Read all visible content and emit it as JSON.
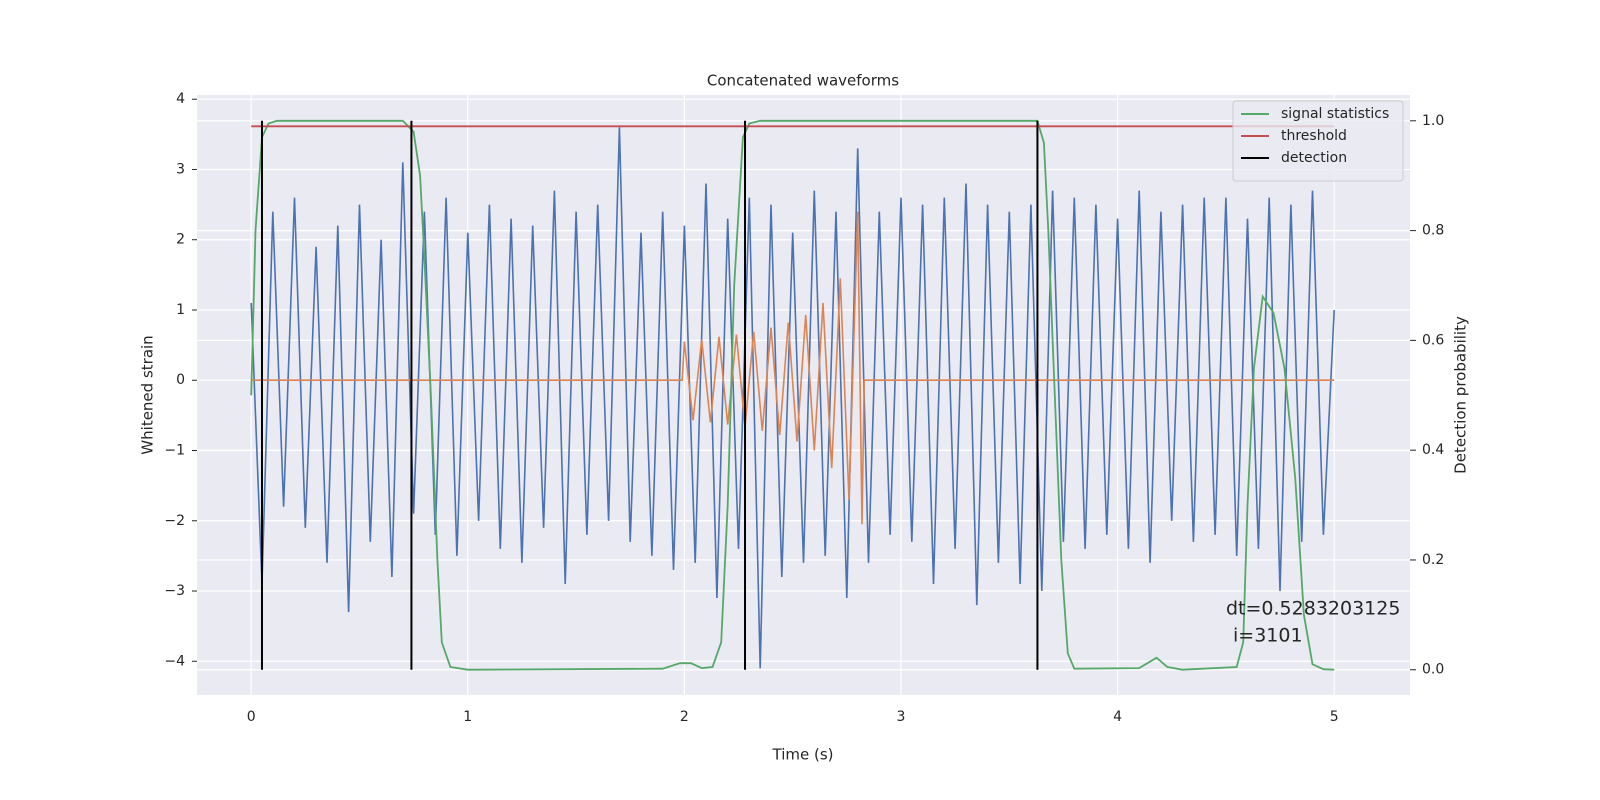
{
  "chart_data": {
    "type": "line",
    "title": "Concatenated waveforms",
    "x_label": "Time (s)",
    "y_label": "Whitened strain",
    "y2_label": "Detection probability",
    "xlim": [
      -0.25,
      5.35
    ],
    "ylim": [
      -4.48,
      4.06
    ],
    "y2lim": [
      -0.046,
      1.047
    ],
    "xticks": [
      0,
      1,
      2,
      3,
      4,
      5
    ],
    "yticks": [
      {
        "value": -4,
        "label": "−4"
      },
      {
        "value": -3,
        "label": "−3"
      },
      {
        "value": -2,
        "label": "−2"
      },
      {
        "value": -1,
        "label": "−1"
      },
      0,
      1,
      2,
      3,
      4
    ],
    "y2ticks": [
      {
        "value": 0,
        "label": "0.0"
      },
      {
        "value": 0.2,
        "label": "0.2"
      },
      {
        "value": 0.4,
        "label": "0.4"
      },
      {
        "value": 0.6,
        "label": "0.6"
      },
      {
        "value": 0.8,
        "label": "0.8"
      },
      {
        "value": 1,
        "label": "1.0"
      }
    ],
    "grid": true,
    "legend": "upper right",
    "annotation": [
      "dt=0.5283203125",
      "i=3101"
    ],
    "series": [
      {
        "color": "#4c72b0",
        "x": [
          0,
          0.05,
          0.1,
          0.15,
          0.2,
          0.25,
          0.3,
          0.35,
          0.4,
          0.45,
          0.5,
          0.55,
          0.6,
          0.65,
          0.7,
          0.75,
          0.8,
          0.85,
          0.9,
          0.95,
          1,
          1.05,
          1.1,
          1.15,
          1.2,
          1.25,
          1.3,
          1.35,
          1.4,
          1.45,
          1.5,
          1.55,
          1.6,
          1.65,
          1.7,
          1.75,
          1.8,
          1.85,
          1.9,
          1.95,
          2,
          2.05,
          2.1,
          2.15,
          2.2,
          2.25,
          2.3,
          2.35,
          2.4,
          2.45,
          2.5,
          2.55,
          2.6,
          2.65,
          2.7,
          2.75,
          2.8,
          2.85,
          2.9,
          2.95,
          3,
          3.05,
          3.1,
          3.15,
          3.2,
          3.25,
          3.3,
          3.35,
          3.4,
          3.45,
          3.5,
          3.55,
          3.6,
          3.65,
          3.7,
          3.75,
          3.8,
          3.85,
          3.9,
          3.95,
          4,
          4.05,
          4.1,
          4.15,
          4.2,
          4.25,
          4.3,
          4.35,
          4.4,
          4.45,
          4.5,
          4.55,
          4.6,
          4.65,
          4.7,
          4.75,
          4.8,
          4.85,
          4.9,
          4.95,
          5
        ],
        "values": [
          1.1,
          -2.9,
          2.4,
          -1.8,
          2.6,
          -2.1,
          1.9,
          -2.6,
          2.2,
          -3.3,
          2.5,
          -2.3,
          2.0,
          -2.8,
          3.1,
          -1.9,
          2.4,
          -2.2,
          2.6,
          -2.5,
          2.1,
          -2.0,
          2.5,
          -2.4,
          2.3,
          -2.6,
          2.2,
          -2.1,
          2.7,
          -2.9,
          2.4,
          -2.2,
          2.5,
          -2.0,
          3.6,
          -2.3,
          2.1,
          -2.5,
          2.4,
          -2.7,
          2.2,
          -2.6,
          2.8,
          -3.1,
          2.3,
          -2.4,
          2.6,
          -4.1,
          2.5,
          -2.8,
          2.1,
          -2.6,
          2.7,
          -2.5,
          2.4,
          -3.1,
          3.3,
          -2.6,
          2.4,
          -2.2,
          2.6,
          -2.3,
          2.5,
          -2.9,
          2.6,
          -2.4,
          2.8,
          -3.2,
          2.5,
          -2.6,
          2.4,
          -2.9,
          2.5,
          -3.0,
          2.7,
          -2.3,
          2.6,
          -2.4,
          2.5,
          -2.2,
          2.3,
          -2.4,
          2.7,
          -2.6,
          2.4,
          -2.0,
          2.5,
          -2.3,
          2.6,
          -2.2,
          2.6,
          -2.5,
          2.3,
          -2.4,
          2.6,
          -3.0,
          2.5,
          -2.3,
          2.7,
          -2.2,
          1.0
        ]
      },
      {
        "color": "#dd8452",
        "x": [
          0,
          1.99,
          2.0,
          2.04,
          2.08,
          2.12,
          2.16,
          2.2,
          2.24,
          2.28,
          2.32,
          2.36,
          2.4,
          2.44,
          2.48,
          2.52,
          2.56,
          2.6,
          2.64,
          2.68,
          2.72,
          2.76,
          2.8,
          2.82,
          2.83,
          5
        ],
        "values": [
          0,
          0,
          0.55,
          -0.57,
          0.58,
          -0.6,
          0.62,
          -0.63,
          0.65,
          -0.67,
          0.69,
          -0.72,
          0.75,
          -0.78,
          0.82,
          -0.87,
          0.93,
          -1.0,
          1.1,
          -1.25,
          1.45,
          -1.7,
          2.4,
          -2.05,
          0,
          0
        ]
      },
      {
        "name": "signal statistics",
        "color": "#55a868",
        "axis": "y2",
        "x": [
          0,
          0.02,
          0.05,
          0.08,
          0.12,
          0.7,
          0.75,
          0.78,
          0.8,
          0.83,
          0.86,
          0.88,
          0.92,
          1.0,
          1.9,
          1.98,
          2.03,
          2.08,
          2.13,
          2.17,
          2.2,
          2.23,
          2.27,
          2.3,
          2.35,
          3.63,
          3.66,
          3.68,
          3.71,
          3.74,
          3.77,
          3.8,
          4.1,
          4.18,
          4.23,
          4.3,
          4.55,
          4.58,
          4.6,
          4.63,
          4.67,
          4.72,
          4.77,
          4.82,
          4.86,
          4.9,
          4.95,
          5
        ],
        "values": [
          0.5,
          0.8,
          0.97,
          0.995,
          1.0,
          1.0,
          0.98,
          0.9,
          0.75,
          0.5,
          0.2,
          0.05,
          0.005,
          0.0,
          0.002,
          0.012,
          0.012,
          0.003,
          0.005,
          0.05,
          0.3,
          0.7,
          0.97,
          0.995,
          1.0,
          1.0,
          0.96,
          0.8,
          0.5,
          0.2,
          0.03,
          0.002,
          0.003,
          0.022,
          0.005,
          0.0,
          0.005,
          0.05,
          0.3,
          0.55,
          0.68,
          0.65,
          0.55,
          0.35,
          0.1,
          0.01,
          0.001,
          0.0
        ]
      },
      {
        "name": "threshold",
        "color": "#c44e52",
        "axis": "y2",
        "x": [
          0,
          5
        ],
        "values": [
          0.99,
          0.99
        ]
      },
      {
        "name": "detection",
        "color": "#000000",
        "axis": "y2",
        "vlines": [
          0.05,
          0.74,
          2.28,
          3.63
        ],
        "ymin": 0,
        "ymax": 1
      }
    ]
  }
}
